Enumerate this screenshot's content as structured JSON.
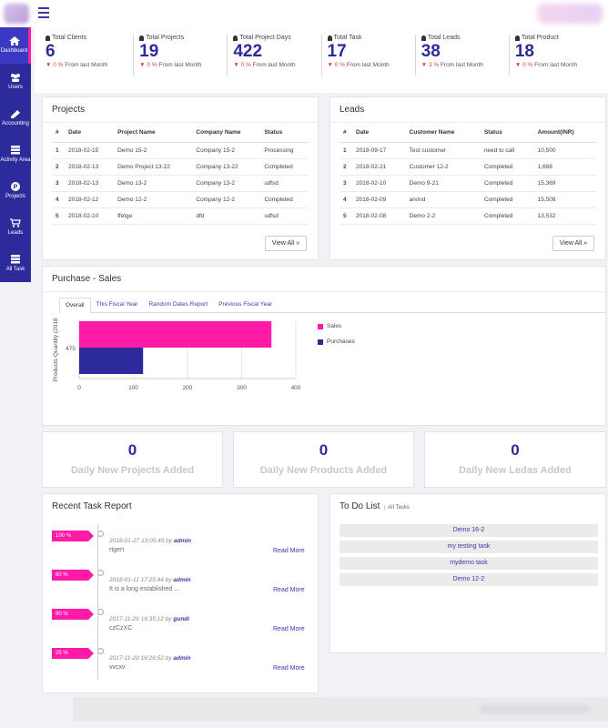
{
  "nav": {
    "items": [
      {
        "label": "Dashboard",
        "icon": "home-icon"
      },
      {
        "label": "Users",
        "icon": "users-icon"
      },
      {
        "label": "Accounting",
        "icon": "book-icon"
      },
      {
        "label": "Activity Area",
        "icon": "server-icon"
      },
      {
        "label": "Projects",
        "icon": "product-hunt-icon"
      },
      {
        "label": "Leads",
        "icon": "cart-icon"
      },
      {
        "label": "All Task",
        "icon": "tasks-icon"
      }
    ]
  },
  "stats": [
    {
      "label": "Total Clients",
      "value": "6",
      "pct": "0 %",
      "suffix": "From last Month"
    },
    {
      "label": "Total Projects",
      "value": "19",
      "pct": "0 %",
      "suffix": "From last Month"
    },
    {
      "label": "Total Project Days",
      "value": "422",
      "pct": "0 %",
      "suffix": "From last Month"
    },
    {
      "label": "Total Task",
      "value": "17",
      "pct": "0 %",
      "suffix": "From last Month"
    },
    {
      "label": "Total Leads",
      "value": "38",
      "pct": "3 %",
      "suffix": "From last Month"
    },
    {
      "label": "Total Product",
      "value": "18",
      "pct": "0 %",
      "suffix": "From last Month"
    }
  ],
  "projects": {
    "title": "Projects",
    "headers": [
      "#",
      "Date",
      "Project Name",
      "Company Name",
      "Status"
    ],
    "rows": [
      [
        "1",
        "2018-02-15",
        "Demo 15-2",
        "Company 15-2",
        "Processing"
      ],
      [
        "2",
        "2018-02-13",
        "Demo Project 13-22",
        "Company 13-22",
        "Completed"
      ],
      [
        "3",
        "2018-02-13",
        "Demo 13-2",
        "Company 13-2",
        "sdfsd"
      ],
      [
        "4",
        "2018-02-12",
        "Demo 12-2",
        "Company 12-2",
        "Completed"
      ],
      [
        "5",
        "2018-02-10",
        "ffetge",
        "dfd",
        "sdfsd"
      ]
    ],
    "view_all": "View All »"
  },
  "leads": {
    "title": "Leads",
    "headers": [
      "#",
      "Date",
      "Customer Name",
      "Status",
      "Amount(INR)"
    ],
    "rows": [
      [
        "1",
        "2018-09-17",
        "Test customer",
        "need to call",
        "10,500"
      ],
      [
        "2",
        "2018-02-21",
        "Customer 12-2",
        "Completed",
        "1,688"
      ],
      [
        "3",
        "2018-02-10",
        "Demo 9-21",
        "Completed",
        "15,369"
      ],
      [
        "4",
        "2018-02-09",
        "arvind",
        "Completed",
        "15,508"
      ],
      [
        "5",
        "2018-02-08",
        "Demo 2-2",
        "Completed",
        "13,532"
      ]
    ],
    "view_all": "View All »"
  },
  "purchase_sales": {
    "title": "Purchase - Sales",
    "tabs": [
      "Overall",
      "This Fiscal Year",
      "Random Dates Report",
      "Previous Fiscal Year"
    ]
  },
  "chart_data": {
    "type": "bar",
    "orientation": "horizontal",
    "categories": [
      "475"
    ],
    "series": [
      {
        "name": "Sales",
        "values": [
          355
        ],
        "color": "#ff1aa8"
      },
      {
        "name": "Purchases",
        "values": [
          118
        ],
        "color": "#2d2a9c"
      }
    ],
    "ylabel": "Products Quantity (2018",
    "xticks": [
      "0",
      "100",
      "200",
      "300",
      "400"
    ],
    "xlim": [
      0,
      400
    ],
    "legend": "right"
  },
  "daily": [
    {
      "value": "0",
      "label": "Daily New Projects Added"
    },
    {
      "value": "0",
      "label": "Daily New Products Added"
    },
    {
      "value": "0",
      "label": "Daily New Ledas Added"
    }
  ],
  "tasks": {
    "title": "Recent Task Report",
    "items": [
      {
        "pct": "100 %",
        "date": "2018-01-27 13:05:49",
        "by": "by",
        "user": "admin",
        "text": "rtgert",
        "more": "Read More"
      },
      {
        "pct": "60 %",
        "date": "2018-01-11 17:25:44",
        "by": "by",
        "user": "admin",
        "text": "It is a long established ...",
        "more": "Read More"
      },
      {
        "pct": "90 %",
        "date": "2017-11-29 16:35:12",
        "by": "by",
        "user": "gundi",
        "text": "czCzXC",
        "more": "Read More"
      },
      {
        "pct": "25 %",
        "date": "2017-11-29 16:26:52",
        "by": "by",
        "user": "admin",
        "text": "vvcxv",
        "more": "Read More"
      }
    ]
  },
  "todo": {
    "title": "To Do List",
    "sub": "All Tasks",
    "items": [
      "Demo 16-2",
      "my testing task",
      "mydemo task",
      "Demo 12-2"
    ]
  },
  "colors": {
    "primary": "#2d2a9c",
    "accent": "#ff1aa8",
    "down": "#e03a3a"
  }
}
